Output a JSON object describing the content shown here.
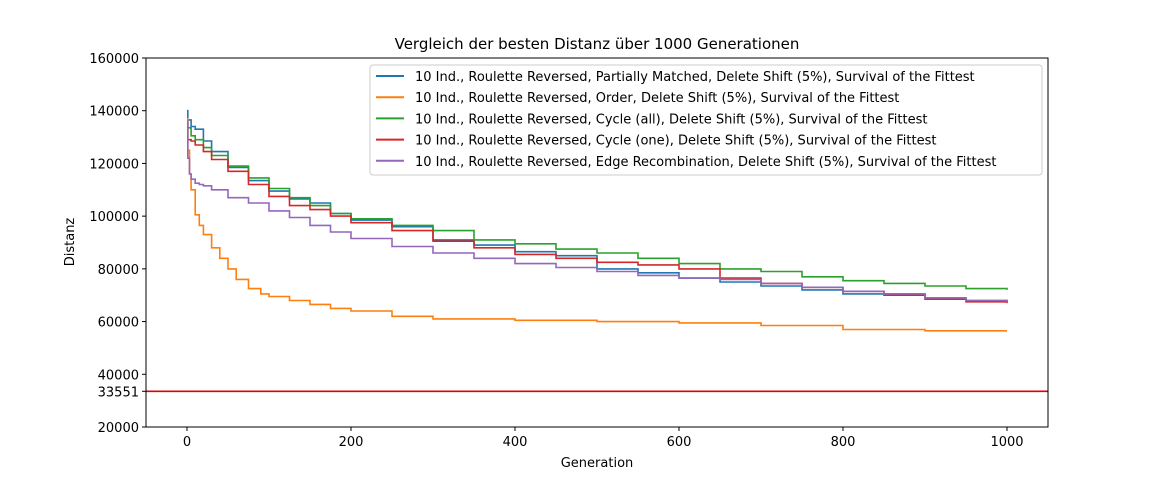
{
  "chart_data": {
    "type": "line",
    "title": "Vergleich der besten Distanz über 1000 Generationen",
    "xlabel": "Generation",
    "ylabel": "Distanz",
    "xlim": [
      -50,
      1050
    ],
    "ylim": [
      20000,
      160000
    ],
    "xticks": [
      0,
      200,
      400,
      600,
      800,
      1000
    ],
    "yticks": [
      20000,
      33551,
      40000,
      60000,
      80000,
      100000,
      120000,
      140000,
      160000
    ],
    "grid": false,
    "legend_position": "top-right",
    "reference_line": {
      "y": 33551,
      "color": "#e00000"
    },
    "series": [
      {
        "name": "10 Ind., Roulette Reversed, Partially Matched, Delete Shift (5%), Survival of the Fittest",
        "color": "#1f77b4",
        "x": [
          0,
          1,
          5,
          10,
          20,
          30,
          50,
          75,
          100,
          125,
          150,
          175,
          200,
          250,
          300,
          350,
          400,
          450,
          500,
          550,
          600,
          650,
          700,
          750,
          800,
          850,
          900,
          950,
          1000
        ],
        "y": [
          140000,
          136500,
          134000,
          133000,
          128500,
          124500,
          118500,
          113500,
          109500,
          106500,
          105000,
          101000,
          98500,
          96000,
          91000,
          89000,
          86500,
          85000,
          80000,
          78500,
          76500,
          75000,
          73500,
          72000,
          70500,
          70500,
          69000,
          68000,
          67500
        ]
      },
      {
        "name": "10 Ind., Roulette Reversed, Order, Delete Shift (5%), Survival of the Fittest",
        "color": "#ff7f0e",
        "x": [
          0,
          1,
          3,
          5,
          10,
          15,
          20,
          30,
          40,
          50,
          60,
          75,
          90,
          100,
          125,
          150,
          175,
          200,
          250,
          300,
          400,
          500,
          550,
          600,
          700,
          800,
          900,
          1000
        ],
        "y": [
          137000,
          125000,
          116000,
          110000,
          100500,
          96500,
          93000,
          88000,
          84000,
          80000,
          76000,
          72500,
          70500,
          69500,
          68000,
          66500,
          65000,
          64000,
          62000,
          61000,
          60500,
          60000,
          60000,
          59500,
          58500,
          57000,
          56500,
          56500
        ]
      },
      {
        "name": "10 Ind., Roulette Reversed, Cycle (all), Delete Shift (5%), Survival of the Fittest",
        "color": "#2ca02c",
        "x": [
          0,
          1,
          5,
          10,
          20,
          30,
          50,
          75,
          100,
          125,
          150,
          175,
          200,
          250,
          300,
          350,
          400,
          450,
          500,
          550,
          600,
          650,
          700,
          750,
          800,
          850,
          900,
          950,
          1000
        ],
        "y": [
          136000,
          133500,
          130500,
          129000,
          126000,
          123000,
          119000,
          114500,
          110500,
          107000,
          104000,
          101000,
          99000,
          96500,
          94500,
          91000,
          89500,
          87500,
          86000,
          84000,
          82000,
          80000,
          79000,
          77000,
          75500,
          74500,
          73500,
          72500,
          72000
        ]
      },
      {
        "name": "10 Ind., Roulette Reversed, Cycle (one), Delete Shift (5%), Survival of the Fittest",
        "color": "#d62728",
        "x": [
          0,
          1,
          5,
          10,
          20,
          30,
          50,
          75,
          100,
          125,
          150,
          175,
          200,
          250,
          300,
          350,
          400,
          450,
          500,
          550,
          600,
          650,
          700,
          750,
          800,
          850,
          900,
          950,
          1000
        ],
        "y": [
          135000,
          129000,
          128500,
          127000,
          124500,
          121500,
          117000,
          112000,
          107500,
          104000,
          102500,
          100000,
          97500,
          94500,
          90500,
          88000,
          85500,
          84000,
          82500,
          81500,
          80000,
          76500,
          74500,
          73000,
          71500,
          70000,
          68500,
          67500,
          67000
        ]
      },
      {
        "name": "10 Ind., Roulette Reversed, Edge Recombination, Delete Shift (5%), Survival of the Fittest",
        "color": "#9467bd",
        "x": [
          0,
          1,
          3,
          5,
          10,
          15,
          20,
          30,
          50,
          75,
          100,
          125,
          150,
          175,
          200,
          250,
          300,
          350,
          400,
          450,
          500,
          550,
          600,
          650,
          700,
          750,
          800,
          850,
          900,
          950,
          1000
        ],
        "y": [
          136000,
          122000,
          116000,
          114000,
          112500,
          112000,
          111500,
          110000,
          107000,
          105000,
          102000,
          99500,
          96500,
          94000,
          91500,
          88500,
          86000,
          84000,
          82000,
          80500,
          79000,
          77500,
          76500,
          76000,
          74500,
          73000,
          71500,
          70500,
          69000,
          68000,
          67500
        ]
      }
    ]
  }
}
